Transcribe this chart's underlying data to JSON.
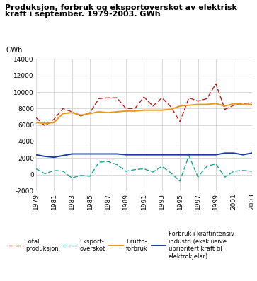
{
  "title_line1": "Produksjon, forbruk og eksportoverskot av elektrisk",
  "title_line2": "kraft i september. 1979-2003. GWh",
  "ylabel": "GWh",
  "years": [
    1979,
    1980,
    1981,
    1982,
    1983,
    1984,
    1985,
    1986,
    1987,
    1988,
    1989,
    1990,
    1991,
    1992,
    1993,
    1994,
    1995,
    1996,
    1997,
    1998,
    1999,
    2000,
    2001,
    2002,
    2003
  ],
  "total_produksjon": [
    6900,
    5900,
    6700,
    8000,
    7600,
    7100,
    7500,
    9200,
    9300,
    9300,
    8000,
    8000,
    9400,
    8300,
    9300,
    8200,
    6400,
    9300,
    8900,
    9200,
    11000,
    7900,
    8400,
    8600,
    8700
  ],
  "eksport_overskot": [
    700,
    100,
    500,
    400,
    -400,
    -100,
    -200,
    1500,
    1600,
    1200,
    400,
    600,
    700,
    300,
    1000,
    200,
    -800,
    2300,
    -300,
    1000,
    1300,
    -300,
    400,
    500,
    400
  ],
  "brutto_forbruk": [
    6300,
    6200,
    6300,
    7400,
    7500,
    7200,
    7400,
    7600,
    7500,
    7600,
    7700,
    7700,
    7800,
    7800,
    7800,
    7900,
    8300,
    8400,
    8500,
    8500,
    8600,
    8300,
    8600,
    8500,
    8500
  ],
  "kraftintensiv": [
    2400,
    2200,
    2100,
    2300,
    2500,
    2500,
    2500,
    2500,
    2500,
    2500,
    2400,
    2400,
    2400,
    2400,
    2400,
    2400,
    2400,
    2400,
    2400,
    2400,
    2400,
    2600,
    2600,
    2400,
    2600
  ],
  "color_produksjon": "#b22222",
  "color_eksport": "#20a090",
  "color_brutto": "#e8971e",
  "color_kraftintensiv": "#1a3a9c",
  "ylim_min": -2000,
  "ylim_max": 14000,
  "yticks": [
    -2000,
    0,
    2000,
    4000,
    6000,
    8000,
    10000,
    12000,
    14000
  ],
  "xticks": [
    1979,
    1981,
    1983,
    1985,
    1987,
    1989,
    1991,
    1993,
    1995,
    1997,
    1999,
    2001,
    2003
  ],
  "legend_labels": [
    "Total\nproduksjon",
    "Eksport-\noverskot",
    "Brutto-\nforbruk",
    "Forbruk i kraftintensiv\nindustri (eksklusive\nuprioritert kraft til\nelektrokjelar)"
  ],
  "bg_color": "#ffffff",
  "grid_color": "#cccccc"
}
